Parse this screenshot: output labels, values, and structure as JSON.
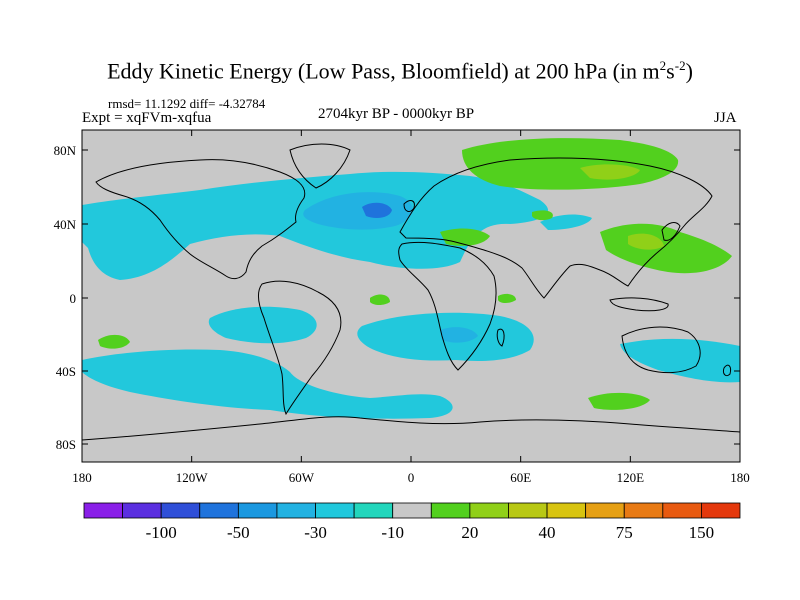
{
  "title": {
    "text": "Eddy Kinetic Energy (Low Pass, Bloomfield) at 200 hPa (in m",
    "sup1": "2",
    "mid": "s",
    "sup2": "-2",
    "end": ")"
  },
  "stats": {
    "text": "rmsd= 11.1292 diff= -4.32784"
  },
  "experiment": {
    "text": "Expt = xqFVm-xqfua"
  },
  "period": {
    "text": "2704kyr BP - 0000kyr BP"
  },
  "season": {
    "text": "JJA"
  },
  "axes": {
    "lon_labels": [
      "180",
      "120W",
      "60W",
      "0",
      "60E",
      "120E",
      "180"
    ],
    "lat_labels": [
      "80N",
      "40N",
      "0",
      "40S",
      "80S"
    ]
  },
  "colorbar": {
    "labels": [
      "-100",
      "-50",
      "-30",
      "-10",
      "20",
      "40",
      "75",
      "150"
    ],
    "colors": [
      "#8a1fe8",
      "#5b2fe0",
      "#2f4fd8",
      "#1f73dc",
      "#1b98e0",
      "#22b2e2",
      "#20c8dc",
      "#22d6bc",
      "#c8c8c8",
      "#52d01e",
      "#90d018",
      "#b8c814",
      "#d8c410",
      "#e6a014",
      "#e87a14",
      "#e85a10",
      "#e4380c"
    ]
  },
  "colors": {
    "land_fill": "#c8c8c8",
    "light_blue": "#22c8dc",
    "cyan": "#22b2e2",
    "mid_blue": "#1b98e0",
    "dark_blue": "#1f73dc",
    "light_green": "#52d01e",
    "mid_green": "#90d018"
  }
}
